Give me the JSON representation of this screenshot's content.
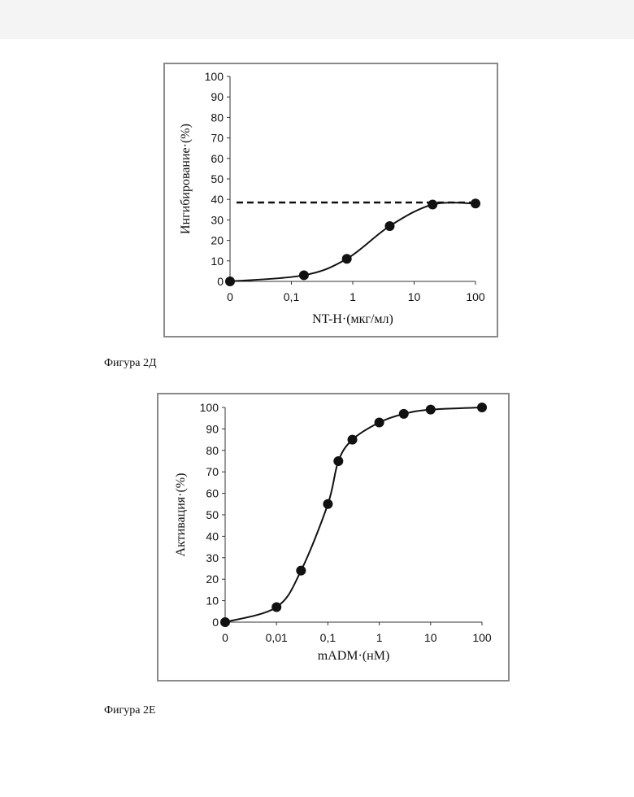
{
  "chart_data": [
    {
      "type": "scatter",
      "x_scale": "log",
      "x_ticks": [
        "0",
        "0,1",
        "1",
        "10",
        "100"
      ],
      "y_ticks": [
        "0",
        "10",
        "20",
        "30",
        "40",
        "50",
        "60",
        "70",
        "80",
        "90",
        "100"
      ],
      "ylim": [
        0,
        100
      ],
      "xlabel": "NT-H·(мкг/мл)",
      "ylabel": "Ингибирование·(%)",
      "series": [
        {
          "x": [
            0.01,
            0.16,
            0.8,
            4,
            20,
            100
          ],
          "y": [
            0,
            3,
            11,
            27,
            37.5,
            38
          ]
        }
      ],
      "reference_line": {
        "y": 38.5,
        "style": "dashed"
      },
      "caption": "Фигура 2Д"
    },
    {
      "type": "scatter",
      "x_scale": "log",
      "x_ticks": [
        "0",
        "0,01",
        "0,1",
        "1",
        "10",
        "100"
      ],
      "y_ticks": [
        "0",
        "10",
        "20",
        "30",
        "40",
        "50",
        "60",
        "70",
        "80",
        "90",
        "100"
      ],
      "ylim": [
        0,
        100
      ],
      "xlabel": "mADM·(нМ)",
      "ylabel": "Активация·(%)",
      "series": [
        {
          "x": [
            0.001,
            0.01,
            0.03,
            0.1,
            0.16,
            0.3,
            1,
            3,
            10,
            100
          ],
          "y": [
            0,
            7,
            24,
            55,
            75,
            85,
            93,
            97,
            99,
            100
          ]
        }
      ],
      "caption": "Фигура 2Е"
    }
  ]
}
